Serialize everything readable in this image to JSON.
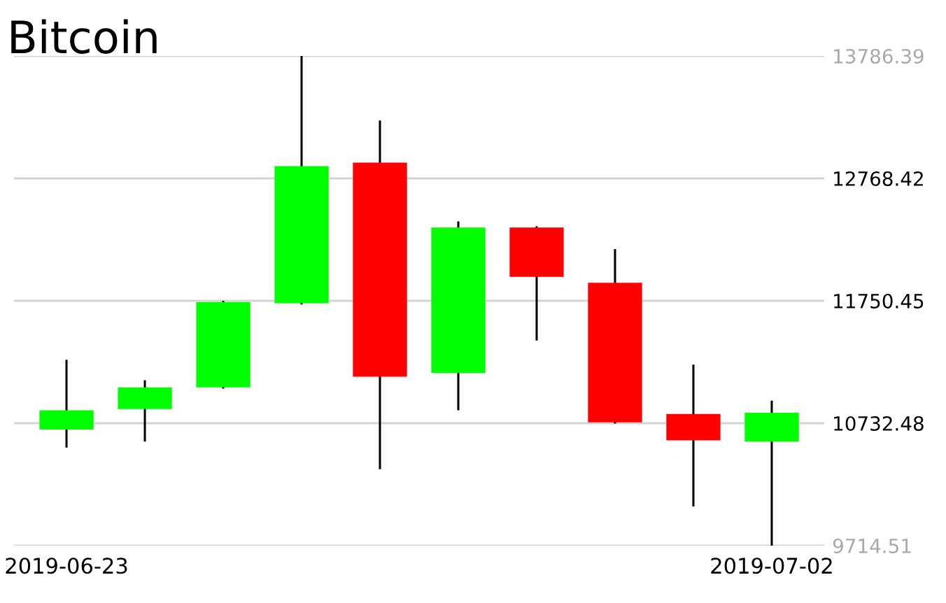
{
  "chart_data": {
    "type": "candlestick",
    "title": "Bitcoin",
    "categories": [
      "2019-06-23",
      null,
      null,
      null,
      null,
      null,
      null,
      null,
      null,
      "2019-07-02"
    ],
    "ohlc": [
      [
        10680,
        11260,
        10530,
        10840
      ],
      [
        10850,
        11090,
        10580,
        11030
      ],
      [
        11030,
        11750,
        11020,
        11740
      ],
      [
        11730,
        13786.39,
        11720,
        12870
      ],
      [
        12900,
        13250,
        10350,
        11120
      ],
      [
        11150,
        12410,
        10840,
        12360
      ],
      [
        12360,
        12370,
        11420,
        11950
      ],
      [
        11900,
        12180,
        10730,
        10740
      ],
      [
        10810,
        11220,
        10040,
        10590
      ],
      [
        10580,
        10920,
        9714.51,
        10820
      ]
    ],
    "colors": [
      "#00ff00",
      "#00ff00",
      "#00ff00",
      "#00ff00",
      "#ff0000",
      "#00ff00",
      "#ff0000",
      "#ff0000",
      "#ff0000",
      "#00ff00"
    ],
    "ylim": [
      9714.51,
      13786.39
    ],
    "yticks": [
      9714.51,
      10732.48,
      11750.45,
      12768.42,
      13786.39
    ],
    "grid": "y"
  }
}
